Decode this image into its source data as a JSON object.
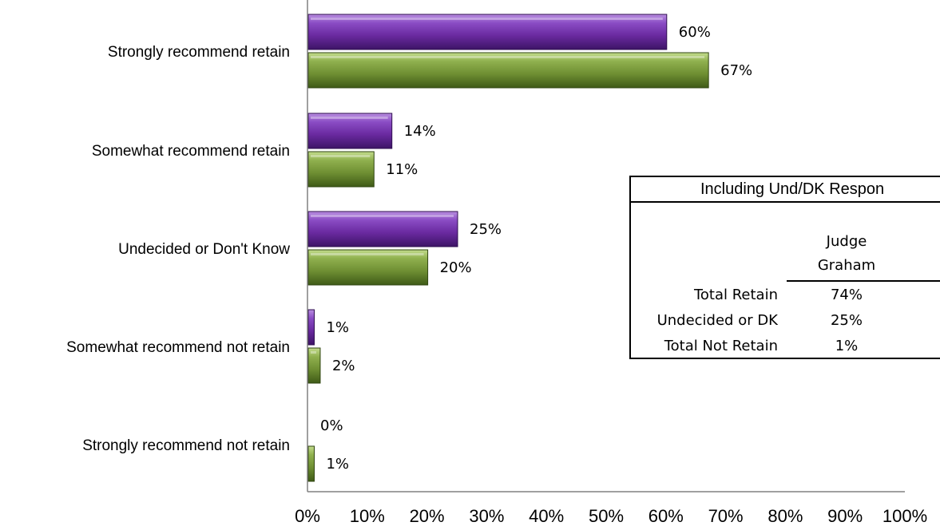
{
  "chart_data": {
    "type": "bar",
    "orientation": "horizontal",
    "categories": [
      "Strongly recommend retain",
      "Somewhat recommend retain",
      "Undecided or Don't Know",
      "Somewhat recommend not retain",
      "Strongly recommend not retain"
    ],
    "series": [
      {
        "values": [
          60,
          14,
          25,
          1,
          0
        ],
        "labels": [
          "60%",
          "14%",
          "25%",
          "1%",
          "0%"
        ],
        "color": "#7030A0"
      },
      {
        "values": [
          67,
          11,
          20,
          2,
          1
        ],
        "labels": [
          "67%",
          "11%",
          "20%",
          "2%",
          "1%"
        ],
        "color": "#77933C"
      }
    ],
    "xlim": [
      0,
      100
    ],
    "xticks": [
      "0%",
      "10%",
      "20%",
      "30%",
      "40%",
      "50%",
      "60%",
      "70%",
      "80%",
      "90%",
      "100%"
    ],
    "grid": false,
    "legend": "none"
  },
  "summary_table": {
    "title": "Including Und/DK Respon",
    "column_header_line1": "Judge",
    "column_header_line2": "Graham",
    "rows": [
      {
        "label": "Total Retain",
        "value": "74%"
      },
      {
        "label": "Undecided or DK",
        "value": "25%"
      },
      {
        "label": "Total Not Retain",
        "value": "1%"
      }
    ]
  }
}
